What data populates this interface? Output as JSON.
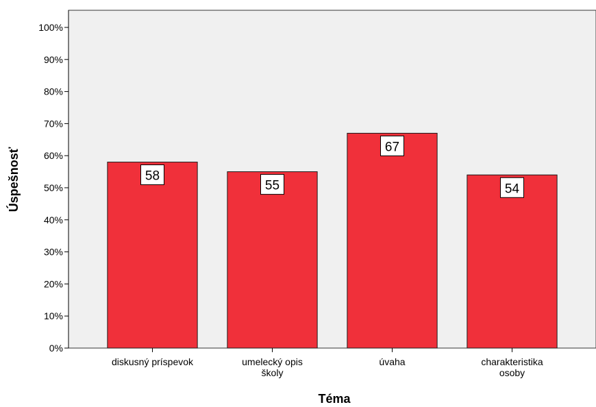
{
  "chart_data": {
    "type": "bar",
    "categories": [
      [
        "diskusný príspevok"
      ],
      [
        "umelecký opis",
        "školy"
      ],
      [
        "úvaha"
      ],
      [
        "charakteristika",
        "osoby"
      ]
    ],
    "values": [
      58,
      55,
      67,
      54
    ],
    "data_labels": [
      "58",
      "55",
      "67",
      "54"
    ],
    "xlabel": "Téma",
    "ylabel": "Úspešnosť",
    "ylim": [
      0,
      100
    ],
    "yticks": [
      0,
      10,
      20,
      30,
      40,
      50,
      60,
      70,
      80,
      90,
      100
    ],
    "ytick_suffix": "%",
    "grid": false,
    "colors": {
      "bar_fill": "#f0303a",
      "bar_stroke": "#1a1a1a",
      "plot_background": "#f0f0f0",
      "label_box": "#ffffff"
    }
  }
}
